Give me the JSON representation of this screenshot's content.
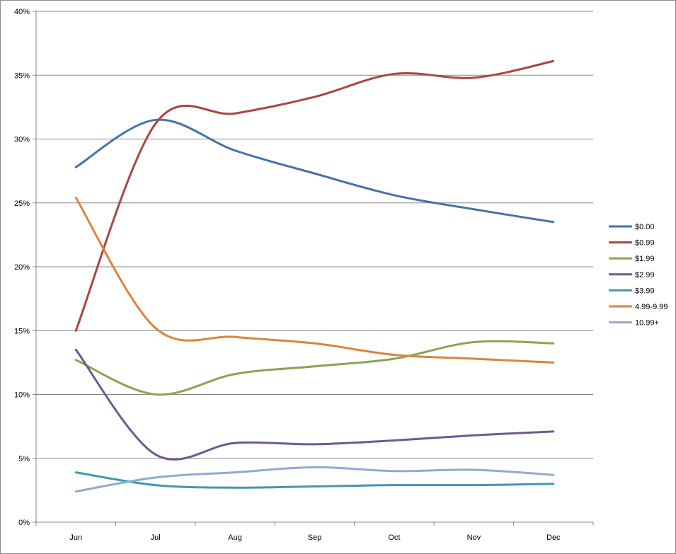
{
  "chart_data": {
    "type": "line",
    "categories": [
      "Jun",
      "Jul",
      "Aug",
      "Sep",
      "Oct",
      "Nov",
      "Dec"
    ],
    "y_tick_labels": [
      "0%",
      "5%",
      "10%",
      "15%",
      "20%",
      "25%",
      "30%",
      "35%",
      "40%"
    ],
    "ylim": [
      0,
      40
    ],
    "grid": true,
    "legend": "right",
    "series": [
      {
        "name": "$0.00",
        "color": "#4572A7",
        "values": [
          27.8,
          31.5,
          29.1,
          27.3,
          25.6,
          24.5,
          23.5
        ]
      },
      {
        "name": "$0.99",
        "color": "#AA4643",
        "values": [
          15.0,
          31.2,
          32.0,
          33.3,
          35.1,
          34.8,
          36.1
        ]
      },
      {
        "name": "$1.99",
        "color": "#89A54E",
        "values": [
          12.7,
          10.0,
          11.6,
          12.2,
          12.8,
          14.1,
          14.0
        ]
      },
      {
        "name": "$2.99",
        "color": "#71588F",
        "values": [
          13.5,
          5.3,
          6.2,
          6.1,
          6.4,
          6.8,
          7.1
        ]
      },
      {
        "name": "$3.99",
        "color": "#4198AF",
        "values": [
          3.9,
          2.9,
          2.7,
          2.8,
          2.9,
          2.9,
          3.0
        ]
      },
      {
        "name": "4.99-9.99",
        "color": "#DB843D",
        "values": [
          25.4,
          15.2,
          14.5,
          14.0,
          13.1,
          12.8,
          12.5
        ]
      },
      {
        "name": "10.99+",
        "color": "#93A9CF",
        "values": [
          2.4,
          3.5,
          3.9,
          4.3,
          4.0,
          4.1,
          3.7
        ]
      }
    ]
  }
}
